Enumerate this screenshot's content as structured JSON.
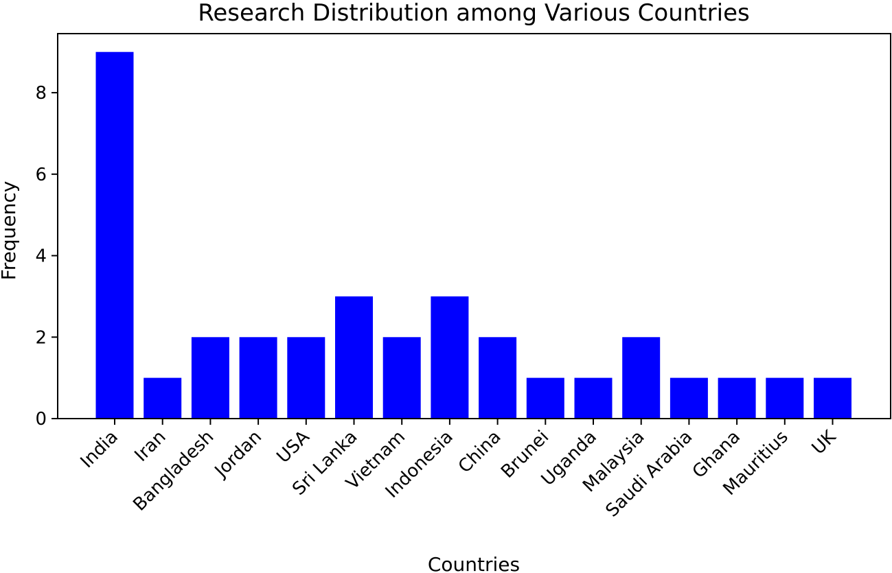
{
  "chart_data": {
    "type": "bar",
    "title": "Research Distribution among Various Countries",
    "xlabel": "Countries",
    "ylabel": "Frequency",
    "categories": [
      "India",
      "Iran",
      "Bangladesh",
      "Jordan",
      "USA",
      "Sri Lanka",
      "Vietnam",
      "Indonesia",
      "China",
      "Brunei",
      "Uganda",
      "Malaysia",
      "Saudi Arabia",
      "Ghana",
      "Mauritius",
      "UK"
    ],
    "values": [
      9,
      1,
      2,
      2,
      2,
      3,
      2,
      3,
      2,
      1,
      1,
      2,
      1,
      1,
      1,
      1
    ],
    "ylim": [
      0,
      9.45
    ],
    "yticks": [
      0,
      2,
      4,
      6,
      8
    ],
    "bar_color": "#0000ff",
    "grid": false,
    "legend": false
  }
}
